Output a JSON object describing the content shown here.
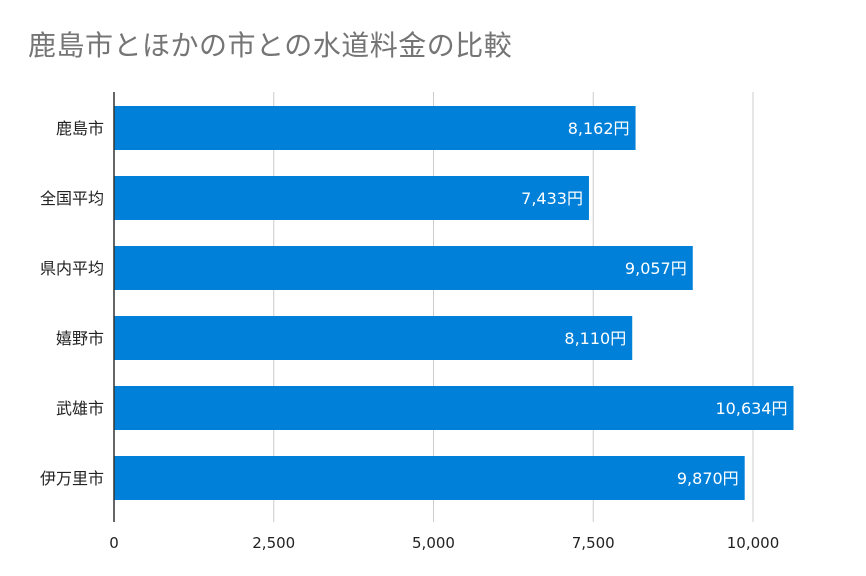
{
  "chart_data": {
    "type": "bar",
    "orientation": "horizontal",
    "title": "鹿島市とほかの市との水道料金の比較",
    "categories": [
      "鹿島市",
      "全国平均",
      "県内平均",
      "嬉野市",
      "武雄市",
      "伊万里市"
    ],
    "values": [
      8162,
      7433,
      9057,
      8110,
      10634,
      9870
    ],
    "data_labels": [
      "8,162円",
      "7,433円",
      "9,057円",
      "8,110円",
      "10,634円",
      "9,870円"
    ],
    "xlim": [
      0,
      10000
    ],
    "x_ticks": [
      0,
      2500,
      5000,
      7500,
      10000
    ],
    "x_tick_labels": [
      "0",
      "2,500",
      "5,000",
      "7,500",
      "10,000"
    ],
    "grid": true,
    "legend": "none",
    "bar_color": "#0080d8",
    "title_color": "#757575"
  }
}
